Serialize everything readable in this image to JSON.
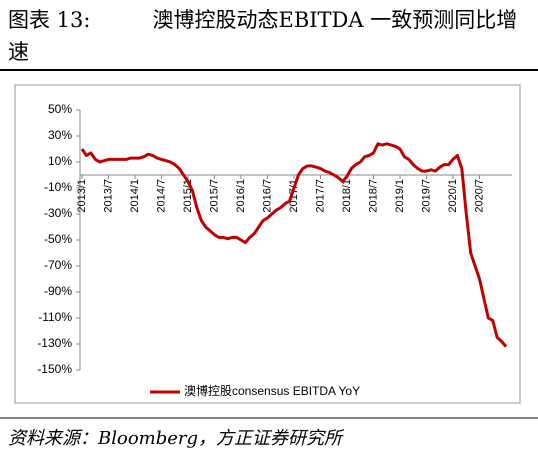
{
  "title_label": "图表 13:",
  "title": "澳博控股动态EBITDA 一致预测同比增速",
  "source": "资料来源：Bloomberg，方正证券研究所",
  "chart_data": {
    "type": "line",
    "categories": [
      "2013/1",
      null,
      null,
      null,
      null,
      null,
      "2013/7",
      null,
      null,
      null,
      null,
      null,
      "2014/1",
      null,
      null,
      null,
      null,
      null,
      "2014/7",
      null,
      null,
      null,
      null,
      null,
      "2015/1",
      null,
      null,
      null,
      null,
      null,
      "2015/7",
      null,
      null,
      null,
      null,
      null,
      "2016/1",
      null,
      null,
      null,
      null,
      null,
      "2016/7",
      null,
      null,
      null,
      null,
      null,
      "2017/1",
      null,
      null,
      null,
      null,
      null,
      "2017/7",
      null,
      null,
      null,
      null,
      null,
      "2018/1",
      null,
      null,
      null,
      null,
      null,
      "2018/7",
      null,
      null,
      null,
      null,
      null,
      "2019/1",
      null,
      null,
      null,
      null,
      null,
      "2019/7",
      null,
      null,
      null,
      null,
      null,
      "2020/1",
      null,
      null,
      null,
      null,
      null,
      "2020/7",
      null,
      null,
      null,
      null,
      null,
      null
    ],
    "series": [
      {
        "name": "澳博控股consensus EBITDA YoY",
        "color": "#c00000",
        "values": [
          20,
          15,
          17,
          12,
          10,
          11,
          12,
          12,
          12,
          12,
          12,
          13,
          13,
          13,
          14,
          16,
          15,
          13,
          12,
          11,
          10,
          8,
          5,
          0,
          -5,
          -12,
          -25,
          -35,
          -40,
          -43,
          -46,
          -48,
          -48,
          -49,
          -48,
          -48,
          -50,
          -52,
          -48,
          -45,
          -40,
          -35,
          -33,
          -30,
          -27,
          -25,
          -22,
          -20,
          -10,
          0,
          5,
          7,
          7,
          6,
          5,
          3,
          2,
          0,
          -2,
          -5,
          -1,
          5,
          8,
          10,
          14,
          15,
          17,
          24,
          23,
          24,
          23,
          22,
          20,
          14,
          12,
          8,
          5,
          3,
          3,
          4,
          3,
          6,
          8,
          8,
          12,
          15,
          5,
          -30,
          -60,
          -70,
          -80,
          -95,
          -110,
          -112,
          -125,
          -128,
          -132
        ]
      }
    ],
    "ylim": [
      -150,
      50
    ],
    "yticks": [
      {
        "value": 50,
        "label": "50%"
      },
      {
        "value": 30,
        "label": "30%"
      },
      {
        "value": 10,
        "label": "10%"
      },
      {
        "value": -10,
        "label": "-10%"
      },
      {
        "value": -30,
        "label": "-30%"
      },
      {
        "value": -50,
        "label": "-50%"
      },
      {
        "value": -70,
        "label": "-70%"
      },
      {
        "value": -90,
        "label": "-90%"
      },
      {
        "value": -110,
        "label": "-110%"
      },
      {
        "value": -130,
        "label": "-130%"
      },
      {
        "value": -150,
        "label": "-150%"
      }
    ],
    "legend": "bottom"
  }
}
